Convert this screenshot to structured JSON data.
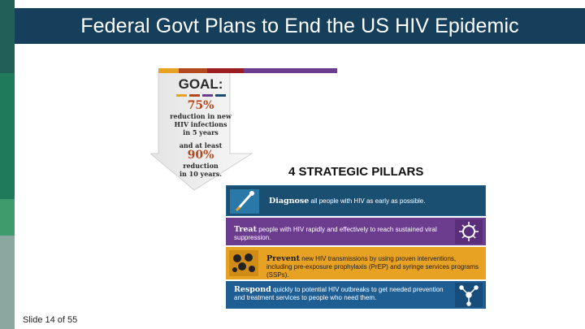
{
  "slide": {
    "title": "Federal Govt Plans to End the US HIV Epidemic",
    "number_label": "Slide 14 of 55"
  },
  "goal": {
    "heading": "GOAL:",
    "pct1": "75%",
    "line1a": "reduction in new",
    "line1b": "HIV infections",
    "line1c": "in 5 years",
    "connector": "and at least",
    "pct2": "90%",
    "line2a": "reduction",
    "line2b": "in 10 years."
  },
  "pillars": {
    "title": "4 STRATEGIC PILLARS",
    "diagnose": {
      "label": "Diagnose",
      "text": " all people with HIV as early as possible."
    },
    "treat": {
      "label": "Treat",
      "text": " people with HIV rapidly and effectively to reach sustained viral suppression."
    },
    "prevent": {
      "label": "Prevent",
      "text": " new HIV transmissions by using proven interventions, including pre-exposure prophylaxis (PrEP) and syringe services programs (SSPs)."
    },
    "respond": {
      "label": "Respond",
      "text": " quickly to potential HIV outbreaks to get needed prevention and treatment services to people who need them."
    }
  },
  "colors": {
    "title_bar": "#153f5a",
    "diagnose": "#1b4f72",
    "treat": "#6c3d8e",
    "prevent": "#e7a224",
    "respond": "#1f5e93",
    "goal_accent": "#b4491f"
  }
}
